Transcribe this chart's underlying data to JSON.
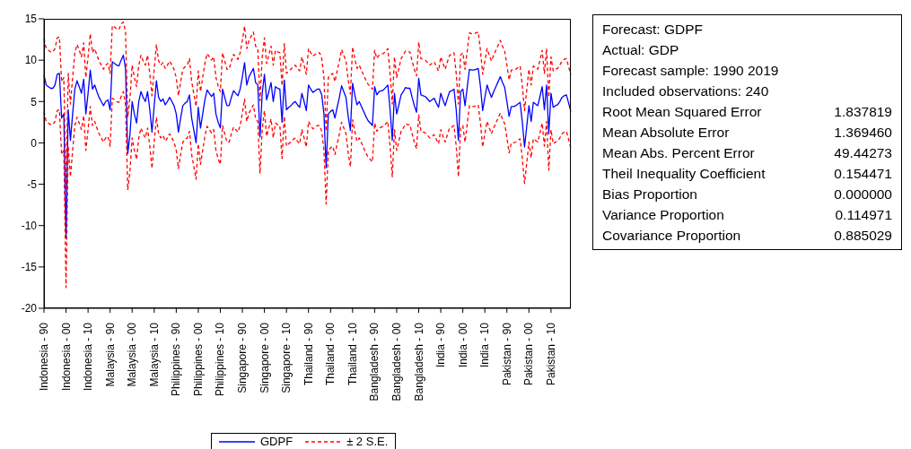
{
  "chart_data": {
    "type": "line",
    "categories": [
      "Indonesia - 90",
      null,
      null,
      null,
      null,
      null,
      null,
      null,
      null,
      null,
      "Indonesia - 00",
      null,
      null,
      null,
      null,
      null,
      null,
      null,
      null,
      null,
      "Indonesia - 10",
      null,
      null,
      null,
      null,
      null,
      null,
      null,
      null,
      null,
      "Malaysia - 90",
      null,
      null,
      null,
      null,
      null,
      null,
      null,
      null,
      null,
      "Malaysia - 00",
      null,
      null,
      null,
      null,
      null,
      null,
      null,
      null,
      null,
      "Malaysia - 10",
      null,
      null,
      null,
      null,
      null,
      null,
      null,
      null,
      null,
      "Philippines - 90",
      null,
      null,
      null,
      null,
      null,
      null,
      null,
      null,
      null,
      "Philippines - 00",
      null,
      null,
      null,
      null,
      null,
      null,
      null,
      null,
      null,
      "Philippines - 10",
      null,
      null,
      null,
      null,
      null,
      null,
      null,
      null,
      null,
      "Singapore - 90",
      null,
      null,
      null,
      null,
      null,
      null,
      null,
      null,
      null,
      "Singapore - 00",
      null,
      null,
      null,
      null,
      null,
      null,
      null,
      null,
      null,
      "Singapore - 10",
      null,
      null,
      null,
      null,
      null,
      null,
      null,
      null,
      null,
      "Thailand - 90",
      null,
      null,
      null,
      null,
      null,
      null,
      null,
      null,
      null,
      "Thailand - 00",
      null,
      null,
      null,
      null,
      null,
      null,
      null,
      null,
      null,
      "Thailand - 10",
      null,
      null,
      null,
      null,
      null,
      null,
      null,
      null,
      null,
      "Bangladesh - 90",
      null,
      null,
      null,
      null,
      null,
      null,
      null,
      null,
      null,
      "Bangladesh - 00",
      null,
      null,
      null,
      null,
      null,
      null,
      null,
      null,
      null,
      "Bangladesh - 10",
      null,
      null,
      null,
      null,
      null,
      null,
      null,
      null,
      null,
      "India - 90",
      null,
      null,
      null,
      null,
      null,
      null,
      null,
      null,
      null,
      "India - 00",
      null,
      null,
      null,
      null,
      null,
      null,
      null,
      null,
      null,
      "India - 10",
      null,
      null,
      null,
      null,
      null,
      null,
      null,
      null,
      null,
      "Pakistan - 90",
      null,
      null,
      null,
      null,
      null,
      null,
      null,
      null,
      null,
      "Pakistan - 00",
      null,
      null,
      null,
      null,
      null,
      null,
      null,
      null,
      null,
      "Pakistan - 10",
      null,
      null,
      null,
      null,
      null,
      null,
      null,
      null,
      null
    ],
    "series": [
      {
        "name": "GDPF",
        "color": "#0000ff",
        "line_style": "solid",
        "values": [
          8.2,
          7.0,
          6.8,
          6.6,
          6.6,
          7.0,
          8.3,
          8.4,
          3.0,
          3.5,
          -11.5,
          4.0,
          0.3,
          3.5,
          6.5,
          7.5,
          6.8,
          6.0,
          7.7,
          3.5,
          6.0,
          8.8,
          6.5,
          7.0,
          6.2,
          5.5,
          5.0,
          4.5,
          5.0,
          5.2,
          4.0,
          9.8,
          9.6,
          9.4,
          9.3,
          10.0,
          10.6,
          9.0,
          -1.3,
          1.0,
          5.0,
          3.5,
          2.4,
          5.0,
          6.2,
          5.5,
          5.0,
          6.2,
          4.0,
          1.3,
          4.5,
          7.5,
          5.5,
          5.0,
          5.3,
          4.6,
          5.0,
          5.5,
          5.0,
          4.5,
          3.5,
          1.3,
          3.0,
          4.5,
          4.8,
          5.0,
          5.8,
          3.0,
          1.5,
          0.0,
          4.3,
          1.8,
          3.5,
          5.2,
          6.4,
          6.0,
          5.6,
          6.0,
          3.5,
          2.5,
          1.8,
          6.5,
          5.5,
          4.5,
          4.5,
          5.5,
          6.3,
          6.0,
          5.7,
          6.5,
          8.0,
          9.7,
          7.0,
          8.0,
          8.5,
          9.0,
          7.3,
          7.0,
          0.7,
          6.0,
          8.3,
          5.2,
          6.2,
          7.3,
          5.0,
          6.8,
          6.6,
          6.5,
          2.5,
          7.6,
          4.0,
          4.3,
          4.5,
          4.8,
          5.0,
          4.6,
          4.3,
          6.0,
          5.0,
          3.9,
          7.0,
          6.5,
          6.1,
          6.3,
          6.5,
          6.5,
          5.8,
          3.5,
          -3.0,
          3.5,
          3.8,
          4.0,
          3.0,
          4.3,
          5.5,
          6.9,
          6.2,
          5.5,
          3.2,
          1.5,
          7.2,
          5.8,
          4.6,
          5.0,
          4.4,
          3.8,
          3.2,
          2.7,
          2.4,
          2.1,
          6.8,
          5.8,
          6.2,
          6.3,
          6.4,
          6.7,
          7.0,
          4.0,
          0.3,
          6.0,
          3.5,
          4.6,
          5.8,
          6.2,
          6.7,
          6.6,
          6.6,
          5.5,
          4.5,
          3.7,
          7.8,
          5.8,
          5.7,
          5.6,
          5.3,
          5.0,
          5.2,
          5.4,
          4.8,
          4.3,
          6.0,
          5.2,
          4.5,
          5.4,
          6.2,
          6.3,
          6.5,
          4.0,
          0.3,
          6.2,
          6.5,
          4.5,
          6.7,
          8.9,
          8.8,
          8.8,
          8.9,
          9.0,
          6.8,
          3.9,
          5.5,
          7.0,
          6.2,
          5.5,
          6.2,
          6.8,
          7.4,
          8.0,
          7.3,
          6.7,
          5.0,
          3.2,
          4.4,
          4.4,
          4.5,
          4.7,
          4.9,
          2.5,
          -0.5,
          2.0,
          4.5,
          2.6,
          4.9,
          4.7,
          4.5,
          5.6,
          6.8,
          4.0,
          7.0,
          1.1,
          6.0,
          4.3,
          4.5,
          4.6,
          5.0,
          5.5,
          5.7,
          5.8,
          4.8,
          3.8
        ]
      },
      {
        "name": "± 2 S.E.",
        "color": "#ff0000",
        "line_style": "dashed",
        "values": [
          12.6,
          11.4,
          11.2,
          11.0,
          11.0,
          11.4,
          12.7,
          12.8,
          7.4,
          7.9,
          -5.5,
          8.4,
          4.7,
          7.9,
          10.9,
          11.9,
          11.2,
          10.4,
          12.1,
          7.9,
          10.4,
          13.2,
          10.9,
          11.4,
          10.6,
          9.9,
          9.4,
          8.9,
          9.4,
          9.6,
          8.4,
          14.2,
          14.0,
          13.8,
          13.7,
          14.4,
          14.6,
          13.4,
          3.1,
          5.4,
          9.4,
          7.9,
          6.8,
          9.4,
          10.6,
          9.9,
          9.4,
          10.6,
          8.4,
          5.7,
          8.9,
          11.9,
          9.9,
          9.4,
          9.7,
          9.0,
          9.4,
          9.9,
          9.4,
          8.9,
          7.9,
          5.7,
          7.4,
          8.9,
          9.2,
          9.4,
          10.2,
          7.4,
          5.9,
          4.4,
          8.7,
          6.2,
          7.9,
          9.6,
          10.8,
          10.4,
          10.0,
          10.4,
          7.9,
          6.9,
          6.2,
          10.9,
          9.9,
          8.9,
          8.9,
          9.9,
          10.7,
          10.4,
          10.1,
          10.9,
          12.4,
          14.1,
          11.4,
          12.4,
          12.9,
          13.4,
          11.7,
          11.4,
          5.1,
          10.4,
          12.7,
          9.6,
          10.6,
          11.7,
          9.4,
          11.2,
          11.0,
          10.9,
          6.9,
          12.0,
          8.4,
          8.7,
          8.9,
          9.2,
          9.4,
          9.0,
          8.7,
          10.4,
          9.4,
          8.3,
          11.4,
          10.9,
          10.5,
          10.7,
          10.9,
          10.9,
          10.2,
          7.9,
          1.4,
          7.9,
          8.2,
          8.4,
          7.4,
          8.7,
          9.9,
          11.3,
          10.6,
          9.9,
          7.6,
          5.9,
          11.6,
          10.2,
          9.0,
          9.4,
          8.8,
          8.2,
          7.6,
          7.1,
          6.8,
          6.5,
          11.2,
          10.2,
          10.6,
          10.7,
          10.8,
          11.1,
          11.4,
          8.4,
          4.7,
          10.4,
          7.9,
          9.0,
          10.2,
          10.6,
          11.1,
          11.0,
          11.0,
          9.9,
          8.9,
          8.1,
          12.2,
          10.2,
          10.1,
          10.0,
          9.7,
          9.4,
          9.6,
          9.8,
          9.2,
          8.7,
          10.4,
          9.6,
          8.9,
          9.8,
          10.6,
          10.7,
          10.9,
          8.4,
          4.7,
          10.6,
          10.9,
          8.9,
          11.1,
          13.3,
          13.2,
          13.2,
          13.3,
          13.4,
          11.2,
          8.3,
          9.9,
          11.4,
          10.6,
          9.9,
          10.6,
          11.2,
          11.8,
          12.4,
          11.7,
          11.1,
          9.4,
          7.6,
          8.8,
          8.8,
          8.9,
          9.1,
          9.3,
          6.9,
          3.9,
          6.4,
          8.9,
          7.0,
          9.3,
          9.1,
          8.9,
          10.0,
          11.2,
          8.4,
          11.4,
          5.5,
          10.4,
          8.7,
          8.9,
          9.0,
          9.4,
          9.9,
          10.1,
          10.2,
          9.2,
          8.2
        ]
      },
      {
        "color": "#ff0000",
        "line_style": "dashed",
        "values": [
          3.8,
          2.6,
          2.4,
          2.2,
          2.2,
          2.6,
          3.9,
          4.0,
          -1.4,
          -0.9,
          -17.5,
          -0.4,
          -4.1,
          -0.9,
          2.1,
          3.1,
          2.4,
          1.6,
          3.3,
          -0.9,
          1.6,
          4.4,
          2.1,
          2.6,
          1.8,
          1.1,
          0.6,
          0.1,
          0.6,
          0.8,
          -0.4,
          5.4,
          5.2,
          5.0,
          4.9,
          5.6,
          6.2,
          4.6,
          -5.7,
          -3.4,
          0.6,
          -0.9,
          -2.0,
          0.6,
          1.8,
          1.1,
          0.6,
          1.8,
          -0.4,
          -3.1,
          0.1,
          3.1,
          1.1,
          0.6,
          0.9,
          0.2,
          0.6,
          1.1,
          0.6,
          0.1,
          -0.9,
          -3.1,
          -1.4,
          0.1,
          0.4,
          0.6,
          1.4,
          -1.4,
          -2.9,
          -4.4,
          -0.1,
          -2.6,
          -0.9,
          0.8,
          2.0,
          1.6,
          1.2,
          1.6,
          -0.9,
          -1.9,
          -2.6,
          2.1,
          1.1,
          0.1,
          0.1,
          1.1,
          1.9,
          1.6,
          1.3,
          2.1,
          3.6,
          5.3,
          2.6,
          3.6,
          4.1,
          4.6,
          2.9,
          2.6,
          -3.7,
          1.6,
          3.9,
          0.8,
          1.8,
          2.9,
          0.6,
          2.4,
          2.2,
          2.1,
          -1.9,
          3.2,
          -0.4,
          -0.1,
          0.1,
          0.4,
          0.6,
          0.2,
          -0.1,
          1.6,
          0.6,
          -0.5,
          2.6,
          2.1,
          1.7,
          1.9,
          2.1,
          2.1,
          1.4,
          -0.9,
          -7.4,
          -0.9,
          -0.6,
          -0.4,
          -1.4,
          -0.1,
          1.1,
          2.5,
          1.8,
          1.1,
          -1.2,
          -2.9,
          2.8,
          1.4,
          0.2,
          0.6,
          0.0,
          -0.6,
          -1.2,
          -1.7,
          -2.0,
          -2.3,
          2.4,
          1.4,
          1.8,
          1.9,
          2.0,
          2.3,
          2.6,
          -0.4,
          -4.1,
          1.6,
          -0.9,
          0.2,
          1.4,
          1.8,
          2.3,
          2.2,
          2.2,
          1.1,
          0.1,
          -0.7,
          3.4,
          1.4,
          1.3,
          1.2,
          0.9,
          0.6,
          0.8,
          1.0,
          0.4,
          -0.1,
          1.6,
          0.8,
          0.1,
          1.0,
          1.8,
          1.9,
          2.1,
          -0.4,
          -4.1,
          1.8,
          2.1,
          0.1,
          2.3,
          4.5,
          4.4,
          4.4,
          4.5,
          4.6,
          2.4,
          -0.5,
          1.1,
          2.6,
          1.8,
          1.1,
          1.8,
          2.4,
          3.0,
          3.6,
          2.9,
          2.3,
          0.6,
          -1.2,
          0.0,
          0.0,
          0.1,
          0.3,
          0.5,
          -1.9,
          -4.9,
          -2.4,
          0.1,
          -1.8,
          0.5,
          0.3,
          0.1,
          1.2,
          2.4,
          -0.4,
          2.6,
          -3.3,
          1.6,
          -0.1,
          0.1,
          0.2,
          0.6,
          1.1,
          1.3,
          1.4,
          0.4,
          -0.6
        ]
      }
    ],
    "ylim": [
      -20,
      15
    ],
    "yticks": [
      -20,
      -15,
      -10,
      -5,
      0,
      5,
      10,
      15
    ],
    "grid": false,
    "legend": "bottom",
    "annotations": [
      "Forecast: GDPF",
      "Actual: GDP",
      "Forecast sample: 1990 2019",
      "Included observations: 240",
      "Root Mean Squared Error 1.837819",
      "Mean Absolute Error 1.369460",
      "Mean Abs. Percent Error 49.44273",
      "Theil Inequality Coefficient 0.154471",
      "Bias Proportion 0.000000",
      "Variance Proportion 0.114971",
      "Covariance Proportion 0.885029"
    ]
  }
}
